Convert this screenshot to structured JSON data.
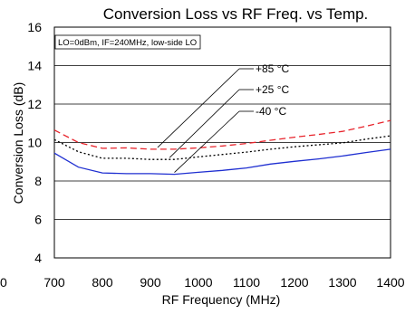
{
  "chart_data": {
    "type": "line",
    "title": "Conversion Loss vs RF Freq. vs Temp.",
    "xlabel": "RF Frequency (MHz)",
    "ylabel": "Conversion Loss (dB)",
    "xlim": [
      700,
      1400
    ],
    "ylim": [
      4,
      16
    ],
    "xticks": [
      700,
      800,
      900,
      1000,
      1100,
      1200,
      1300,
      1400
    ],
    "yticks": [
      4,
      6,
      8,
      10,
      12,
      14,
      16
    ],
    "x_tick_labels": [
      "700",
      "800",
      "900",
      "1000",
      "1100",
      "1200",
      "1300",
      "1400"
    ],
    "y_tick_labels": [
      "4",
      "6",
      "8",
      "10",
      "12",
      "14",
      "16"
    ],
    "grid": "horizontal",
    "note": "LO=0dBm, IF=240MHz, low-side LO",
    "stray_label": "0",
    "series": [
      {
        "name": "+85 °C",
        "color": "#e8232b",
        "dash": "dashed",
        "x": [
          700,
          750,
          800,
          850,
          900,
          950,
          1000,
          1050,
          1100,
          1150,
          1200,
          1250,
          1300,
          1350,
          1400
        ],
        "y": [
          10.65,
          10.0,
          9.7,
          9.72,
          9.65,
          9.65,
          9.72,
          9.82,
          9.95,
          10.12,
          10.28,
          10.42,
          10.58,
          10.85,
          11.15
        ]
      },
      {
        "name": "+25 °C",
        "color": "#000000",
        "dash": "dotted",
        "x": [
          700,
          750,
          800,
          850,
          900,
          950,
          1000,
          1050,
          1100,
          1150,
          1200,
          1250,
          1300,
          1350,
          1400
        ],
        "y": [
          10.15,
          9.52,
          9.18,
          9.18,
          9.12,
          9.12,
          9.25,
          9.38,
          9.5,
          9.65,
          9.78,
          9.88,
          9.98,
          10.18,
          10.35
        ]
      },
      {
        "name": "-40 °C",
        "color": "#1f2fd1",
        "dash": "solid",
        "x": [
          700,
          750,
          800,
          850,
          900,
          950,
          1000,
          1050,
          1100,
          1150,
          1200,
          1250,
          1300,
          1350,
          1400
        ],
        "y": [
          9.45,
          8.72,
          8.42,
          8.38,
          8.38,
          8.35,
          8.45,
          8.55,
          8.68,
          8.88,
          9.02,
          9.15,
          9.3,
          9.48,
          9.65
        ]
      }
    ],
    "annotations": [
      {
        "series": 0,
        "text": "+85 °C",
        "anchor_x": 915,
        "anchor_y": 9.65
      },
      {
        "series": 1,
        "text": "+25 °C",
        "anchor_x": 940,
        "anchor_y": 9.12
      },
      {
        "series": 2,
        "text": "-40 °C",
        "anchor_x": 950,
        "anchor_y": 8.35
      }
    ]
  }
}
